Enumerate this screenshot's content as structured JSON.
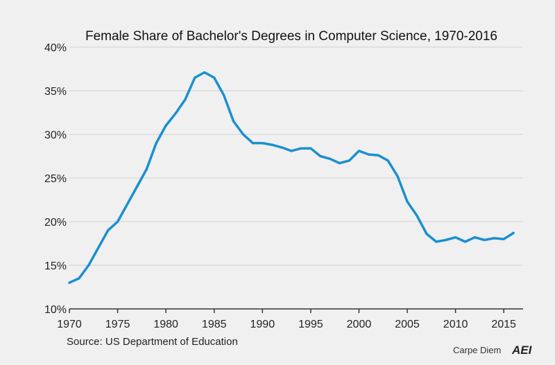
{
  "chart_data": {
    "type": "line",
    "title": "Female Share of Bachelor's Degrees in Computer Science, 1970-2016",
    "xlabel": "",
    "ylabel": "",
    "xlim": [
      1970,
      2017
    ],
    "ylim": [
      10,
      40
    ],
    "x_ticks": [
      1970,
      1975,
      1980,
      1985,
      1990,
      1995,
      2000,
      2005,
      2010,
      2015
    ],
    "y_ticks": [
      {
        "value": 10,
        "label": "10%"
      },
      {
        "value": 15,
        "label": "15%"
      },
      {
        "value": 20,
        "label": "20%"
      },
      {
        "value": 25,
        "label": "25%"
      },
      {
        "value": 30,
        "label": "30%"
      },
      {
        "value": 35,
        "label": "35%"
      },
      {
        "value": 40,
        "label": "40%"
      }
    ],
    "grid": true,
    "color": "#1a8fd0",
    "series": [
      {
        "x": [
          1970,
          1971,
          1972,
          1973,
          1974,
          1975,
          1976,
          1977,
          1978,
          1979,
          1980,
          1981,
          1982,
          1983,
          1984,
          1985,
          1986,
          1987,
          1988,
          1989,
          1990,
          1991,
          1992,
          1993,
          1994,
          1995,
          1996,
          1997,
          1998,
          1999,
          2000,
          2001,
          2002,
          2003,
          2004,
          2005,
          2006,
          2007,
          2008,
          2009,
          2010,
          2011,
          2012,
          2013,
          2014,
          2015,
          2016
        ],
        "values": [
          13.0,
          13.5,
          15.0,
          17.0,
          19.0,
          20.0,
          22.0,
          24.0,
          26.0,
          29.0,
          31.0,
          32.4,
          34.0,
          36.5,
          37.1,
          36.5,
          34.5,
          31.5,
          30.0,
          29.0,
          29.0,
          28.8,
          28.5,
          28.1,
          28.4,
          28.4,
          27.5,
          27.2,
          26.7,
          27.0,
          28.1,
          27.7,
          27.6,
          27.0,
          25.2,
          22.3,
          20.7,
          18.6,
          17.7,
          17.9,
          18.2,
          17.7,
          18.2,
          17.9,
          18.1,
          18.0,
          18.7
        ]
      }
    ],
    "source": "Source: US Department of Education"
  },
  "branding": {
    "publication": "Carpe Diem",
    "logo": "AEI"
  }
}
